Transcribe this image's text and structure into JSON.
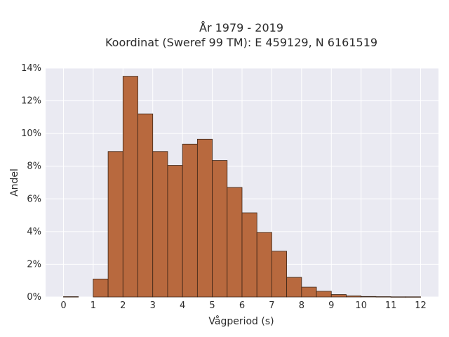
{
  "chart_data": {
    "type": "bar",
    "title_lines": [
      "År 1979 - 2019",
      "Koordinat (Sweref 99 TM): E 459129, N 6161519"
    ],
    "xlabel": "Vågperiod (s)",
    "ylabel": "Andel",
    "xlim": [
      -0.6,
      12.6
    ],
    "ylim": [
      0,
      14
    ],
    "xticks": [
      "0",
      "1",
      "2",
      "3",
      "4",
      "5",
      "6",
      "7",
      "8",
      "9",
      "10",
      "11",
      "12"
    ],
    "yticks": [
      "0%",
      "2%",
      "4%",
      "6%",
      "8%",
      "10%",
      "12%",
      "14%"
    ],
    "bin_width": 0.5,
    "bins": [
      {
        "start": 0.0,
        "value": 0.02
      },
      {
        "start": 1.0,
        "value": 1.1
      },
      {
        "start": 1.5,
        "value": 8.9
      },
      {
        "start": 2.0,
        "value": 13.5
      },
      {
        "start": 2.5,
        "value": 11.2
      },
      {
        "start": 3.0,
        "value": 8.9
      },
      {
        "start": 3.5,
        "value": 8.05
      },
      {
        "start": 4.0,
        "value": 9.35
      },
      {
        "start": 4.5,
        "value": 9.65
      },
      {
        "start": 5.0,
        "value": 8.35
      },
      {
        "start": 5.5,
        "value": 6.7
      },
      {
        "start": 6.0,
        "value": 5.15
      },
      {
        "start": 6.5,
        "value": 3.95
      },
      {
        "start": 7.0,
        "value": 2.8
      },
      {
        "start": 7.5,
        "value": 1.2
      },
      {
        "start": 8.0,
        "value": 0.6
      },
      {
        "start": 8.5,
        "value": 0.35
      },
      {
        "start": 9.0,
        "value": 0.15
      },
      {
        "start": 9.5,
        "value": 0.07
      },
      {
        "start": 10.0,
        "value": 0.03
      },
      {
        "start": 10.5,
        "value": 0.02
      },
      {
        "start": 11.0,
        "value": 0.01
      },
      {
        "start": 11.5,
        "value": 0.01
      }
    ],
    "grid": true,
    "colors": {
      "bar_fill": "#b8693e",
      "bar_edge": "#3a2416",
      "plot_bg": "#eaeaf2",
      "grid": "#ffffff"
    }
  }
}
